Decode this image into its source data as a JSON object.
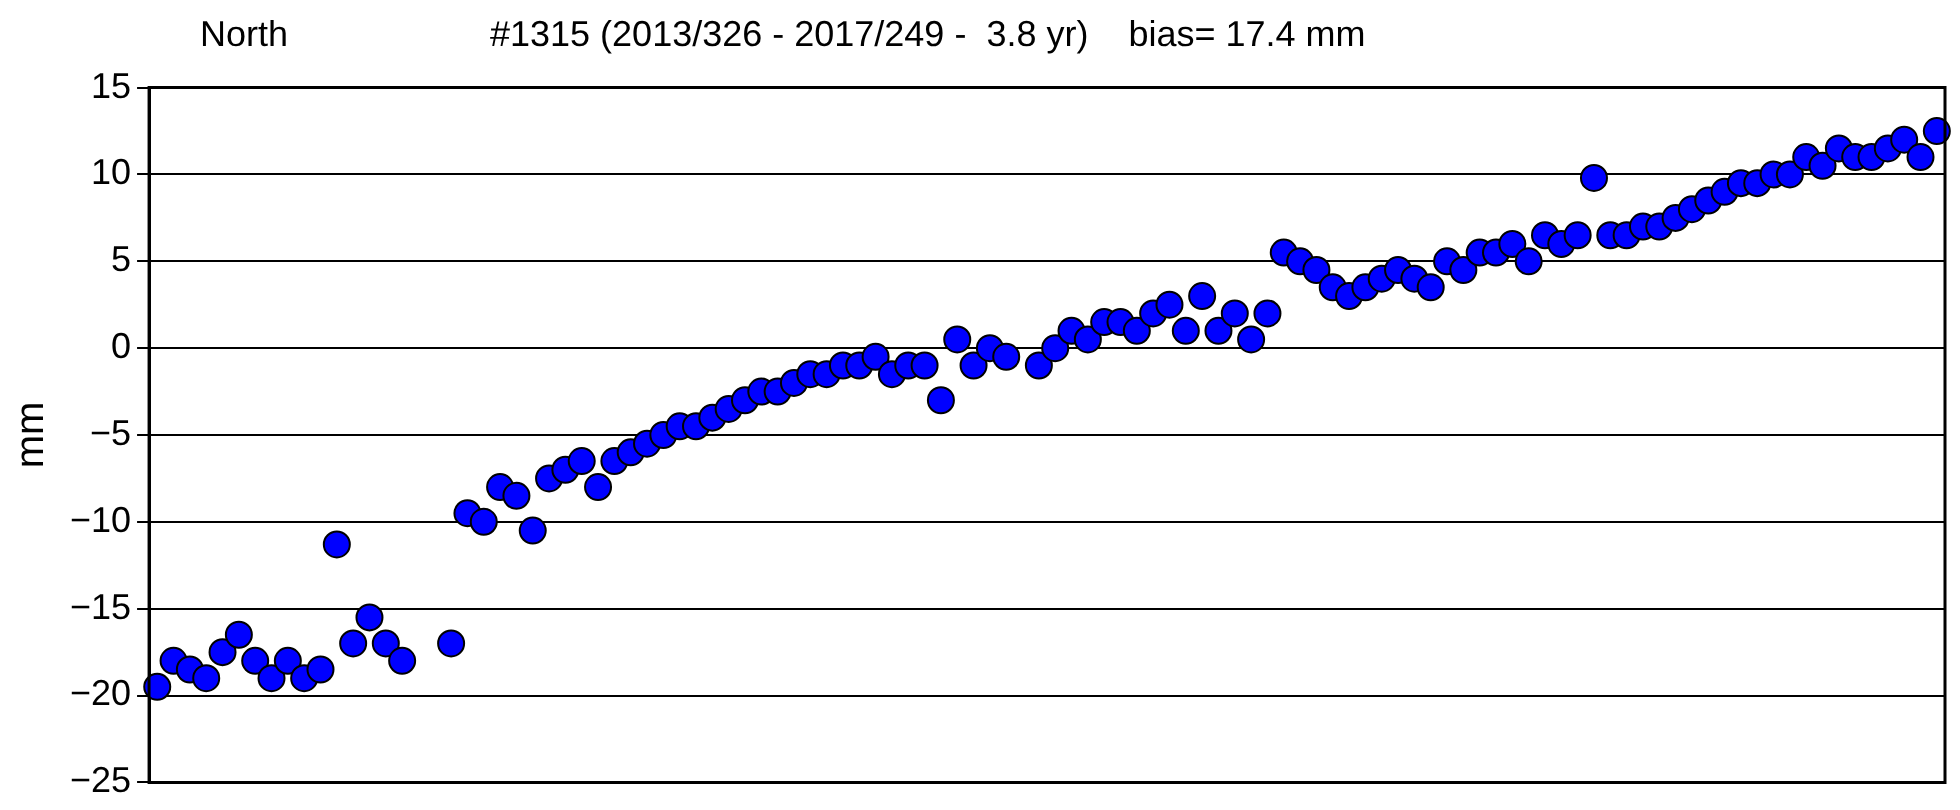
{
  "chart_data": {
    "type": "scatter",
    "title": "North",
    "subtitle": "#1315 (2013/326 - 2017/249 -  3.8 yr)    bias= 17.4 mm",
    "ylabel": "mm",
    "categories": [
      null,
      null,
      null,
      null,
      null,
      null,
      null,
      null,
      null,
      null,
      null,
      null,
      null,
      null,
      null,
      null,
      null,
      null,
      null,
      null,
      null,
      null,
      null,
      null,
      null,
      null,
      null,
      null,
      null,
      null,
      null,
      null,
      null,
      null,
      null,
      null,
      null,
      null,
      null,
      null,
      null,
      null,
      null,
      null,
      null,
      null,
      null,
      null,
      null,
      null,
      null,
      null,
      null,
      null,
      null,
      null,
      null,
      null,
      null,
      null,
      null,
      null,
      null,
      null,
      null,
      null,
      null,
      null,
      null,
      null,
      null,
      null,
      null,
      null,
      null,
      null,
      null,
      null,
      null,
      null,
      null,
      null,
      null,
      null,
      null,
      null,
      null,
      null,
      null,
      null,
      null,
      null,
      null,
      null,
      null,
      null,
      null,
      null,
      null,
      null,
      null,
      null,
      null,
      null,
      null,
      null,
      null,
      null,
      null,
      null
    ],
    "series": [
      {
        "color": "#0000ff",
        "values": [
          -19.5,
          -18,
          -18.5,
          -19,
          -17.5,
          -16.5,
          -18,
          -19,
          -18,
          -19,
          -18.5,
          -11.3,
          -17,
          -15.5,
          -17,
          -18,
          null,
          null,
          -17,
          -9.5,
          -10,
          -8,
          -8.5,
          -10.5,
          -7.5,
          -7,
          -6.5,
          -8,
          -6.5,
          -6,
          -5.5,
          -5,
          -4.5,
          -4.5,
          -4,
          -3.5,
          -3,
          -2.5,
          -2.5,
          -2,
          -1.5,
          -1.5,
          -1,
          -1,
          -0.5,
          -1.5,
          -1,
          -1,
          -3,
          0.5,
          -1,
          0,
          -0.5,
          null,
          -1,
          0,
          1,
          0.5,
          1.5,
          1.5,
          1,
          2,
          2.5,
          1,
          3,
          1,
          2,
          0.5,
          2,
          5.5,
          5,
          4.5,
          3.5,
          3,
          3.5,
          4,
          4.5,
          4,
          3.5,
          5,
          4.5,
          5.5,
          5.5,
          6,
          5,
          6.5,
          6,
          6.5,
          9.8,
          6.5,
          6.5,
          7,
          7,
          7.5,
          8,
          8.5,
          9,
          9.5,
          9.5,
          10,
          10,
          11,
          10.5,
          11.5,
          11,
          11,
          11.5,
          12,
          11,
          12.5
        ]
      }
    ],
    "ylim": [
      -25,
      15
    ],
    "yticks": [
      -25,
      -20,
      -15,
      -10,
      -5,
      0,
      5,
      10,
      15
    ],
    "grid": "y",
    "marker": "circle"
  }
}
